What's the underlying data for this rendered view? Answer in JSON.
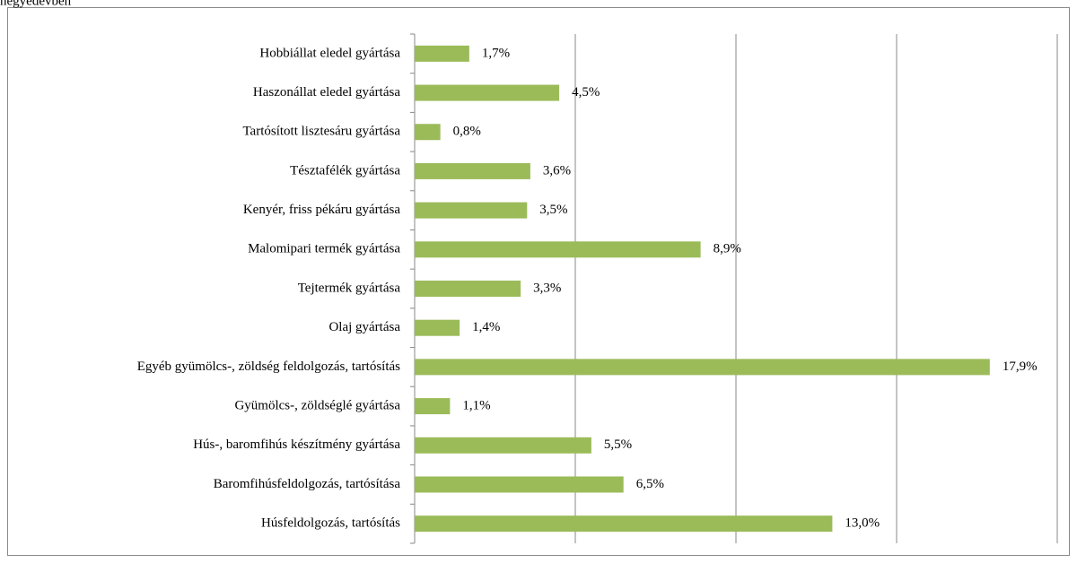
{
  "chart_data": {
    "type": "bar",
    "orientation": "horizontal",
    "title": "negyedévben",
    "categories": [
      "Hobbiállat eledel gyártása",
      "Haszonállat eledel gyártása",
      "Tartósított lisztesáru gyártása",
      "Tésztafélék gyártása",
      "Kenyér, friss pékáru gyártása",
      "Malomipari termék gyártása",
      "Tejtermék gyártása",
      "Olaj gyártása",
      "Egyéb gyümölcs-, zöldség feldolgozás, tartósítás",
      "Gyümölcs-, zöldséglé gyártása",
      "Hús-, baromfihús készítmény gyártása",
      "Baromfihúsfeldolgozás, tartósítása",
      "Húsfeldolgozás, tartósítás"
    ],
    "values": [
      1.7,
      4.5,
      0.8,
      3.6,
      3.5,
      8.9,
      3.3,
      1.4,
      17.9,
      1.1,
      5.5,
      6.5,
      13.0
    ],
    "value_labels": [
      "1,7%",
      "4,5%",
      "0,8%",
      "3,6%",
      "3,5%",
      "8,9%",
      "3,3%",
      "1,4%",
      "17,9%",
      "1,1%",
      "5,5%",
      "6,5%",
      "13,0%"
    ],
    "color": "#9bbb59",
    "xlim": [
      0,
      20
    ],
    "xticks": [
      0,
      5,
      10,
      15,
      20
    ],
    "grid": true
  }
}
